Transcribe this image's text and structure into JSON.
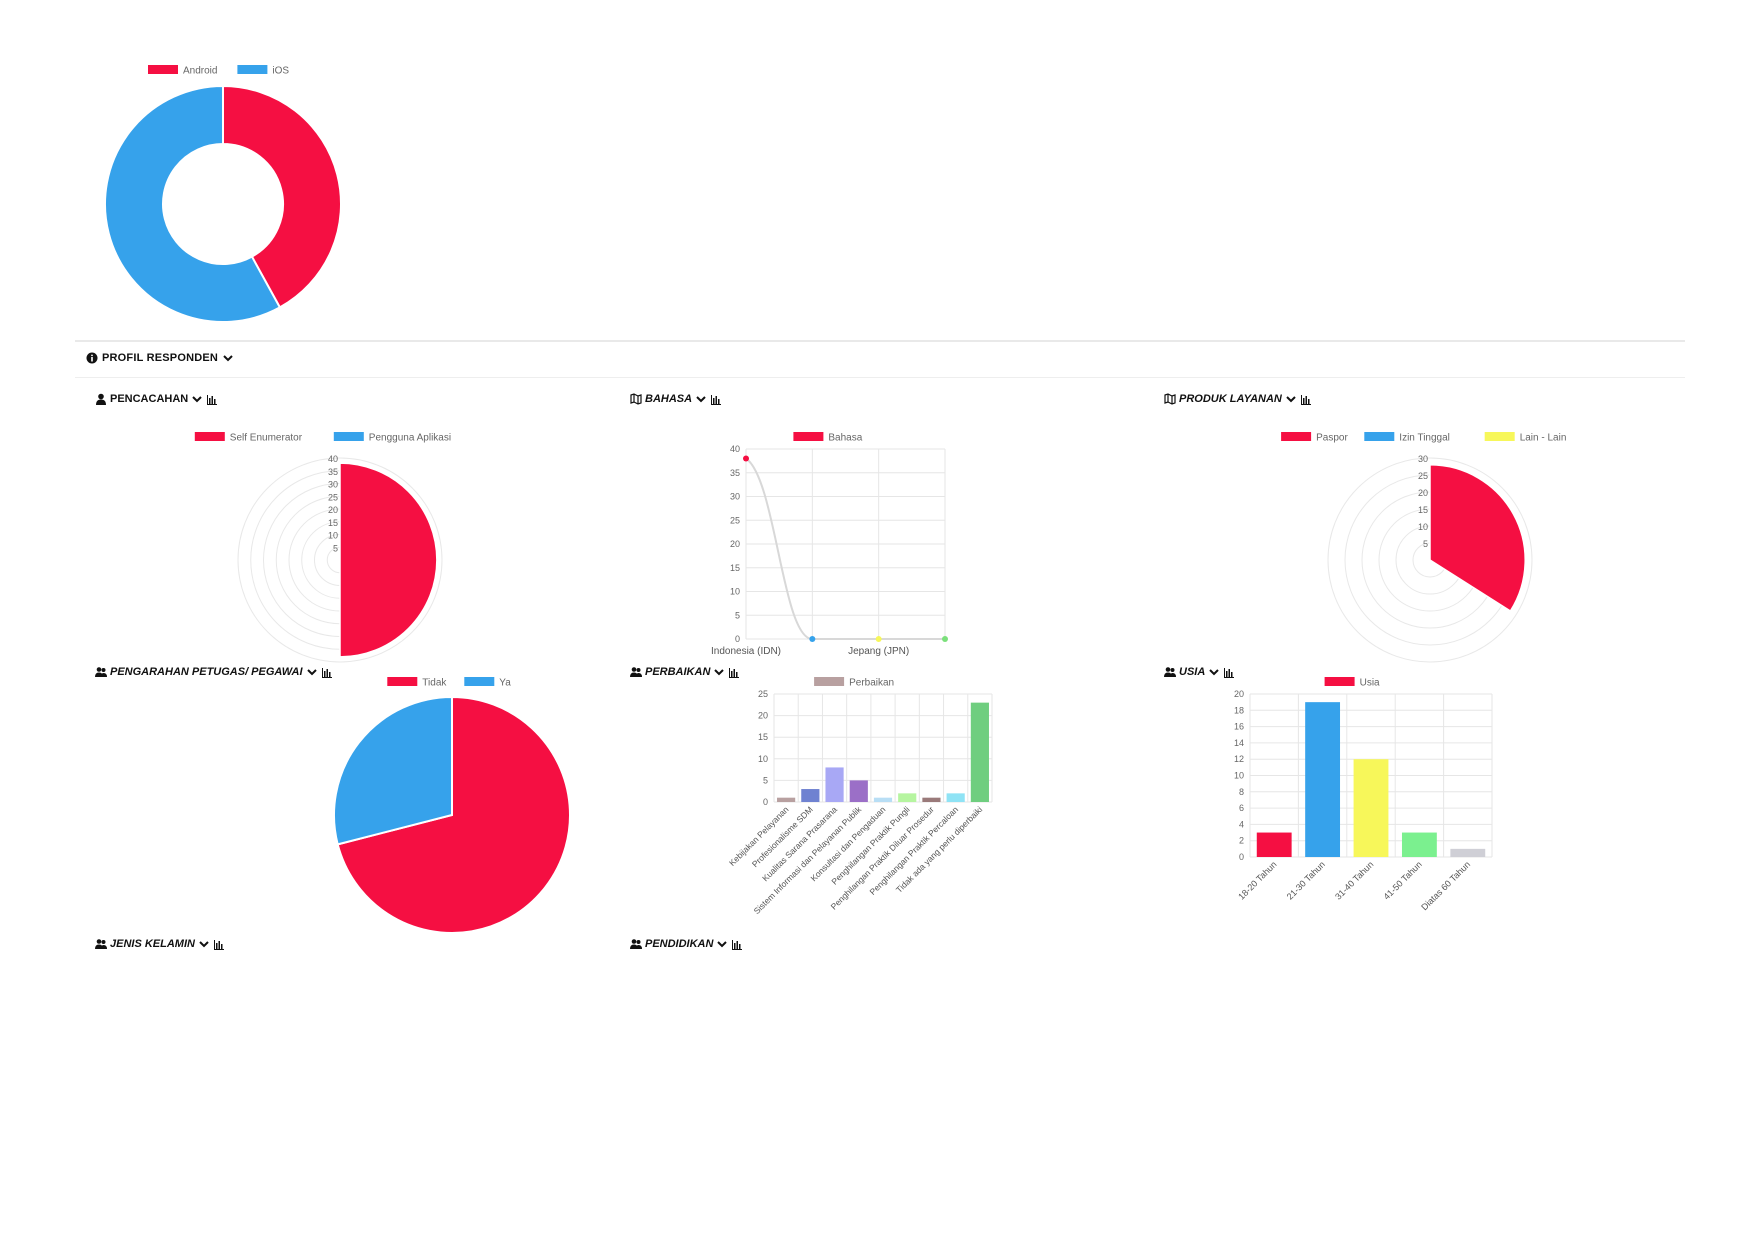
{
  "section": {
    "title": "PROFIL RESPONDEN"
  },
  "panels": {
    "pencacahan": "PENCACAHAN",
    "bahasa": "BAHASA",
    "produk": "PRODUK LAYANAN",
    "pengarahan": "PENGARAHAN PETUGAS/ PEGAWAI",
    "perbaikan": "PERBAIKAN",
    "usia": "USIA",
    "jenis_kelamin": "JENIS KELAMIN",
    "pendidikan": "PENDIDIKAN"
  },
  "colors": {
    "red": "#f50f42",
    "blue": "#36a2eb",
    "yellow": "#f7f75a",
    "grid": "#e6e6e6"
  },
  "chart_data": [
    {
      "id": "platform",
      "type": "pie",
      "variant": "doughnut",
      "legend_position": "top",
      "labels": [
        "Android",
        "iOS"
      ],
      "values": [
        42,
        58
      ],
      "colors": [
        "#f50f42",
        "#36a2eb"
      ]
    },
    {
      "id": "pencacahan",
      "type": "pie",
      "variant": "polarArea",
      "legend_position": "top",
      "labels": [
        "Self Enumerator",
        "Pengguna Aplikasi"
      ],
      "values": [
        38,
        0
      ],
      "colors": [
        "#f50f42",
        "#36a2eb"
      ],
      "rmax": 40,
      "ticks": [
        "40",
        "35",
        "30",
        "25",
        "20",
        "15",
        "10",
        "5"
      ]
    },
    {
      "id": "bahasa",
      "type": "line",
      "legend_position": "top",
      "series": [
        {
          "name": "Bahasa",
          "values": [
            38,
            0,
            0,
            0
          ]
        }
      ],
      "x": [
        "Indonesia (IDN)",
        "",
        "Jepang (JPN)",
        ""
      ],
      "point_colors": [
        "#f50f42",
        "#36a2eb",
        "#f7f75a",
        "#7be07b"
      ],
      "ylim": [
        0,
        40
      ],
      "yticks": [
        0,
        5,
        10,
        15,
        20,
        25,
        30,
        35,
        40
      ],
      "grid": true
    },
    {
      "id": "produk",
      "type": "pie",
      "variant": "polarArea",
      "legend_position": "top",
      "labels": [
        "Paspor",
        "Izin Tinggal",
        "Lain - Lain"
      ],
      "values": [
        28,
        0,
        0
      ],
      "colors": [
        "#f50f42",
        "#36a2eb",
        "#f7f75a"
      ],
      "sweep_fraction": 0.34,
      "rmax": 30,
      "ticks": [
        "30",
        "25",
        "20",
        "15",
        "10",
        "5"
      ]
    },
    {
      "id": "pengarahan",
      "type": "pie",
      "legend_position": "top",
      "labels": [
        "Tidak",
        "Ya"
      ],
      "values": [
        71,
        29
      ],
      "colors": [
        "#f50f42",
        "#36a2eb"
      ]
    },
    {
      "id": "perbaikan",
      "type": "bar",
      "legend_position": "top",
      "series": [
        {
          "name": "Perbaikan",
          "values": [
            1,
            3,
            8,
            5,
            1,
            2,
            1,
            2,
            23
          ]
        }
      ],
      "categories": [
        "Kebijakan Pelayanan",
        "Profesionalisme SDM",
        "Kualitas Sarana Prasarana",
        "Sistem Informasi dan Pelayanan Publik",
        "Konsultasi dan Pengaduan",
        "Penghilangan Praktik Pungli",
        "Penghilangan Praktik Diluar Prosedur",
        "Penghilangan Praktik Percaloan",
        "Tidak ada yang perlu diperbaiki"
      ],
      "bar_colors": [
        "#b8a0a0",
        "#6f82d1",
        "#a8a8f5",
        "#9b6fc7",
        "#b8def5",
        "#b6f5a0",
        "#9a7a7a",
        "#8fe3f5",
        "#6fce7f"
      ],
      "legend_color": "#b8a0a0",
      "ylim": [
        0,
        25
      ],
      "yticks": [
        0,
        5,
        10,
        15,
        20,
        25
      ],
      "grid": true
    },
    {
      "id": "usia",
      "type": "bar",
      "legend_position": "top",
      "series": [
        {
          "name": "Usia",
          "values": [
            3,
            19,
            12,
            3,
            1
          ]
        }
      ],
      "categories": [
        "18-20 Tahun",
        "21-30 Tahun",
        "31-40 Tahun",
        "41-50 Tahun",
        "Diatas 60 Tahun"
      ],
      "bar_colors": [
        "#f50f42",
        "#36a2eb",
        "#f7f75a",
        "#7bf08f",
        "#cfcfd6"
      ],
      "legend_color": "#f50f42",
      "ylim": [
        0,
        20
      ],
      "yticks": [
        0,
        2,
        4,
        6,
        8,
        10,
        12,
        14,
        16,
        18,
        20
      ],
      "grid": true
    }
  ]
}
